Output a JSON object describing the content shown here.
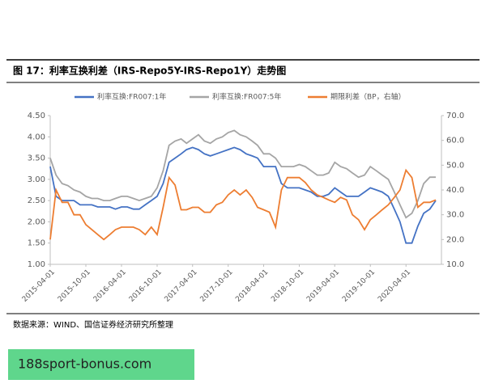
{
  "caption": "图 17：利率互换利差（IRS-Repo5Y-IRS-Repo1Y）走势图",
  "source": "数据来源：WIND、国信证券经济研究所整理",
  "banner": "188sport-bonus.com",
  "chart_data": {
    "type": "line",
    "x": [
      "2015-04-01",
      "2015-05-01",
      "2015-06-01",
      "2015-07-01",
      "2015-08-01",
      "2015-09-01",
      "2015-10-01",
      "2015-11-01",
      "2015-12-01",
      "2016-01-01",
      "2016-02-01",
      "2016-03-01",
      "2016-04-01",
      "2016-05-01",
      "2016-06-01",
      "2016-07-01",
      "2016-08-01",
      "2016-09-01",
      "2016-10-01",
      "2016-11-01",
      "2016-12-01",
      "2017-01-01",
      "2017-02-01",
      "2017-03-01",
      "2017-04-01",
      "2017-05-01",
      "2017-06-01",
      "2017-07-01",
      "2017-08-01",
      "2017-09-01",
      "2017-10-01",
      "2017-11-01",
      "2017-12-01",
      "2018-01-01",
      "2018-02-01",
      "2018-03-01",
      "2018-04-01",
      "2018-05-01",
      "2018-06-01",
      "2018-07-01",
      "2018-08-01",
      "2018-09-01",
      "2018-10-01",
      "2018-11-01",
      "2018-12-01",
      "2019-01-01",
      "2019-02-01",
      "2019-03-01",
      "2019-04-01",
      "2019-05-01",
      "2019-06-01",
      "2019-07-01",
      "2019-08-01",
      "2019-09-01",
      "2019-10-01",
      "2019-11-01",
      "2019-12-01",
      "2020-01-01",
      "2020-02-01",
      "2020-03-01",
      "2020-04-01",
      "2020-05-01",
      "2020-06-01",
      "2020-07-01",
      "2020-08-01",
      "2020-09-01"
    ],
    "series": [
      {
        "name": "利率互换:FR007:1年",
        "color": "#4472c4",
        "values": [
          3.3,
          2.6,
          2.5,
          2.5,
          2.5,
          2.4,
          2.4,
          2.4,
          2.35,
          2.35,
          2.35,
          2.3,
          2.35,
          2.35,
          2.3,
          2.3,
          2.4,
          2.5,
          2.6,
          2.9,
          3.4,
          3.5,
          3.6,
          3.7,
          3.75,
          3.7,
          3.6,
          3.55,
          3.6,
          3.65,
          3.7,
          3.75,
          3.7,
          3.6,
          3.55,
          3.5,
          3.3,
          3.3,
          3.3,
          2.9,
          2.8,
          2.8,
          2.8,
          2.75,
          2.7,
          2.6,
          2.6,
          2.65,
          2.8,
          2.7,
          2.6,
          2.6,
          2.6,
          2.7,
          2.8,
          2.75,
          2.7,
          2.6,
          2.3,
          2.0,
          1.5,
          1.5,
          1.9,
          2.2,
          2.3,
          2.5
        ]
      },
      {
        "name": "利率互换:FR007:5年",
        "color": "#a5a5a5",
        "values": [
          3.5,
          3.1,
          2.9,
          2.85,
          2.75,
          2.7,
          2.6,
          2.55,
          2.55,
          2.5,
          2.5,
          2.55,
          2.6,
          2.6,
          2.55,
          2.5,
          2.55,
          2.6,
          2.8,
          3.2,
          3.8,
          3.9,
          3.95,
          3.85,
          3.95,
          4.05,
          3.9,
          3.85,
          3.95,
          4.0,
          4.1,
          4.15,
          4.05,
          4.0,
          3.9,
          3.8,
          3.6,
          3.6,
          3.5,
          3.3,
          3.3,
          3.3,
          3.35,
          3.3,
          3.2,
          3.1,
          3.1,
          3.15,
          3.4,
          3.3,
          3.25,
          3.15,
          3.05,
          3.1,
          3.3,
          3.2,
          3.1,
          3.0,
          2.7,
          2.4,
          2.1,
          2.2,
          2.5,
          2.9,
          3.05,
          3.05
        ]
      },
      {
        "name": "期限利差（BP，右轴）",
        "color": "#ed7d31",
        "axis": "y2",
        "values": [
          20,
          40,
          35,
          35,
          30,
          30,
          26,
          24,
          22,
          20,
          22,
          24,
          25,
          25,
          25,
          24,
          22,
          25,
          22,
          33,
          45,
          42,
          32,
          32,
          33,
          33,
          31,
          31,
          34,
          35,
          38,
          40,
          38,
          40,
          37,
          33,
          32,
          31,
          25,
          40,
          45,
          45,
          45,
          43,
          40,
          38,
          37,
          36,
          35,
          37,
          36,
          30,
          28,
          24,
          28,
          30,
          32,
          34,
          37,
          40,
          48,
          45,
          33,
          35,
          35,
          36
        ]
      }
    ],
    "xlim": [
      "2015-04-01",
      "2020-09-30"
    ],
    "xticks": [
      "2015-04-01",
      "2015-10-01",
      "2016-04-01",
      "2016-10-01",
      "2017-04-01",
      "2017-10-01",
      "2018-04-01",
      "2018-10-01",
      "2019-04-01",
      "2019-10-01",
      "2020-04-01"
    ],
    "ylim": [
      1,
      4.5
    ],
    "yticks": [
      {
        "value": 1,
        "label": "1.00"
      },
      {
        "value": 1.5,
        "label": "1.50"
      },
      {
        "value": 2,
        "label": "2.00"
      },
      {
        "value": 2.5,
        "label": "2.50"
      },
      {
        "value": 3,
        "label": "3.00"
      },
      {
        "value": 3.5,
        "label": "3.50"
      },
      {
        "value": 4,
        "label": "4.00"
      },
      {
        "value": 4.5,
        "label": "4.50"
      }
    ],
    "y2lim": [
      10,
      70
    ],
    "y2ticks": [
      {
        "value": 10,
        "label": "10.0"
      },
      {
        "value": 20,
        "label": "20.0"
      },
      {
        "value": 30,
        "label": "30.0"
      },
      {
        "value": 40,
        "label": "40.0"
      },
      {
        "value": 50,
        "label": "50.0"
      },
      {
        "value": 60,
        "label": "60.0"
      },
      {
        "value": 70,
        "label": "70.0"
      }
    ],
    "legend": "top"
  }
}
